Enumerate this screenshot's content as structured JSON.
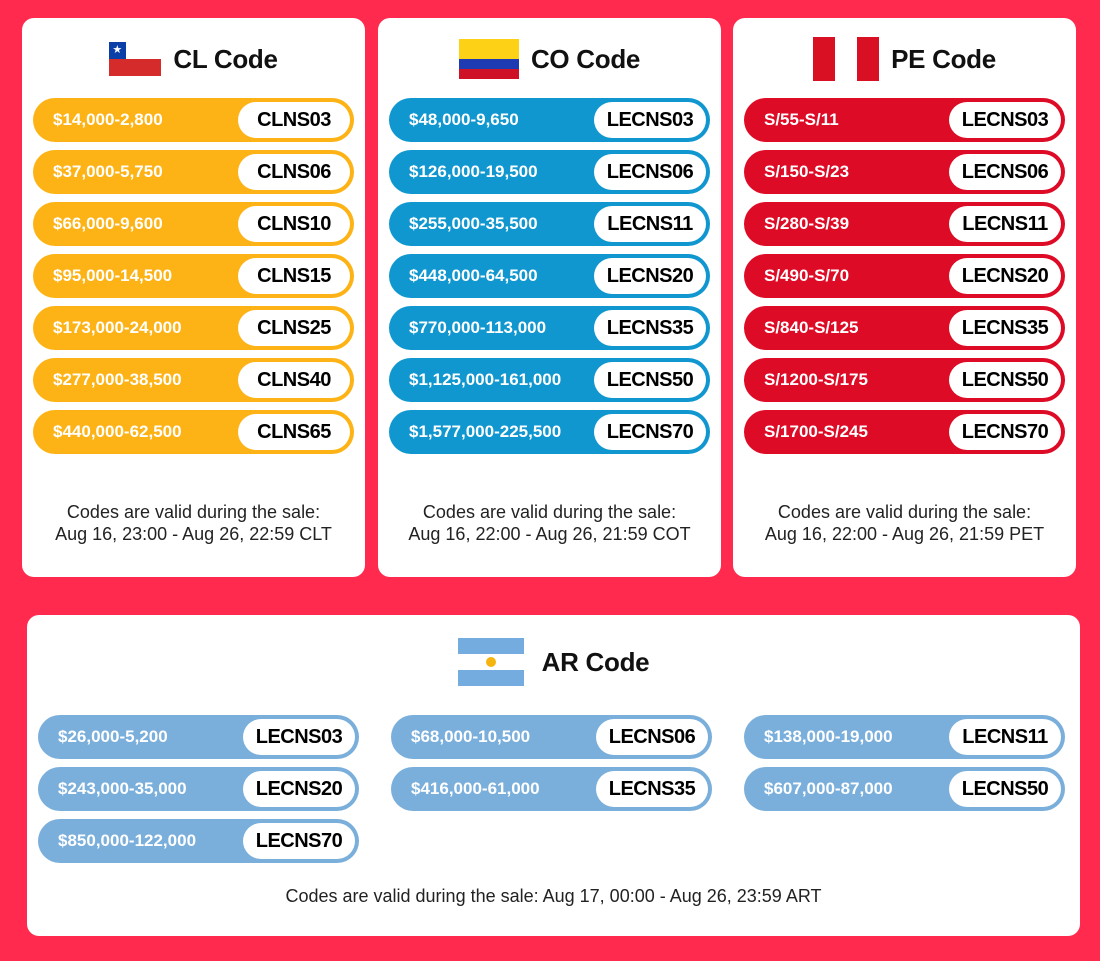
{
  "cards": {
    "cl": {
      "title": "CL Code",
      "flag_icon": "chile-flag-icon",
      "pill_color": "#fdb315",
      "pills": [
        {
          "range": "$14,000-2,800",
          "code": "CLNS03"
        },
        {
          "range": "$37,000-5,750",
          "code": "CLNS06"
        },
        {
          "range": "$66,000-9,600",
          "code": "CLNS10"
        },
        {
          "range": "$95,000-14,500",
          "code": "CLNS15"
        },
        {
          "range": "$173,000-24,000",
          "code": "CLNS25"
        },
        {
          "range": "$277,000-38,500",
          "code": "CLNS40"
        },
        {
          "range": "$440,000-62,500",
          "code": "CLNS65"
        }
      ],
      "validity_line1": "Codes are valid during the sale:",
      "validity_line2": "Aug 16, 23:00 - Aug 26, 22:59 CLT"
    },
    "co": {
      "title": "CO Code",
      "flag_icon": "colombia-flag-icon",
      "pill_color": "#1197cf",
      "pills": [
        {
          "range": "$48,000-9,650",
          "code": "LECNS03"
        },
        {
          "range": "$126,000-19,500",
          "code": "LECNS06"
        },
        {
          "range": "$255,000-35,500",
          "code": "LECNS11"
        },
        {
          "range": "$448,000-64,500",
          "code": "LECNS20"
        },
        {
          "range": "$770,000-113,000",
          "code": "LECNS35"
        },
        {
          "range": "$1,125,000-161,000",
          "code": "LECNS50"
        },
        {
          "range": "$1,577,000-225,500",
          "code": "LECNS70"
        }
      ],
      "validity_line1": "Codes are valid during the sale:",
      "validity_line2": "Aug 16, 22:00 - Aug 26, 21:59 COT"
    },
    "pe": {
      "title": "PE Code",
      "flag_icon": "peru-flag-icon",
      "pill_color": "#dd0b25",
      "pills": [
        {
          "range": "S/55-S/11",
          "code": "LECNS03"
        },
        {
          "range": "S/150-S/23",
          "code": "LECNS06"
        },
        {
          "range": "S/280-S/39",
          "code": "LECNS11"
        },
        {
          "range": "S/490-S/70",
          "code": "LECNS20"
        },
        {
          "range": "S/840-S/125",
          "code": "LECNS35"
        },
        {
          "range": "S/1200-S/175",
          "code": "LECNS50"
        },
        {
          "range": "S/1700-S/245",
          "code": "LECNS70"
        }
      ],
      "validity_line1": "Codes are valid during the sale:",
      "validity_line2": "Aug 16, 22:00 - Aug 26, 21:59 PET"
    },
    "ar": {
      "title": "AR Code",
      "flag_icon": "argentina-flag-icon",
      "pill_color": "#7aafdc",
      "pills": [
        {
          "range": "$26,000-5,200",
          "code": "LECNS03"
        },
        {
          "range": "$68,000-10,500",
          "code": "LECNS06"
        },
        {
          "range": "$138,000-19,000",
          "code": "LECNS11"
        },
        {
          "range": "$243,000-35,000",
          "code": "LECNS20"
        },
        {
          "range": "$416,000-61,000",
          "code": "LECNS35"
        },
        {
          "range": "$607,000-87,000",
          "code": "LECNS50"
        },
        {
          "range": "$850,000-122,000",
          "code": "LECNS70"
        }
      ],
      "validity": "Codes are valid during the sale: Aug 17, 00:00 - Aug 26, 23:59 ART"
    }
  },
  "colors": {
    "background": "#ff2a4d",
    "card": "#ffffff"
  }
}
